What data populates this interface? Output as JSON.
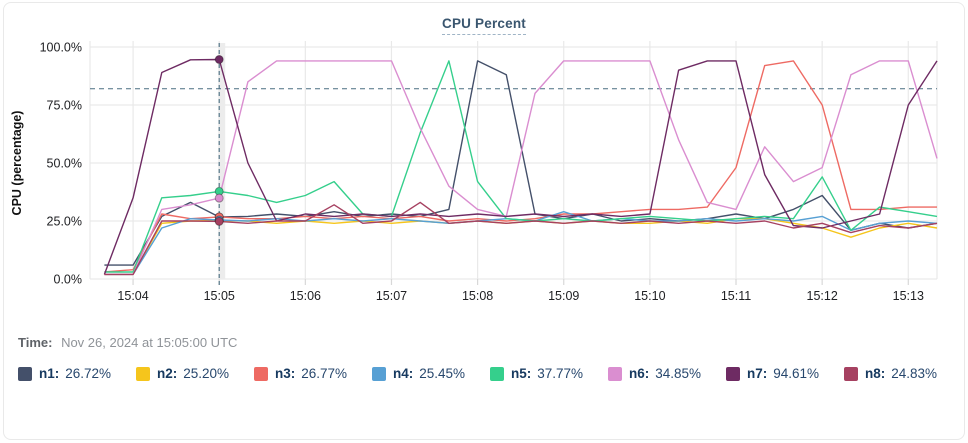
{
  "time_row": {
    "label": "Time:",
    "value": "Nov 26, 2024 at 15:05:00 UTC"
  },
  "chart_data": {
    "type": "line",
    "title": "CPU Percent",
    "ylabel": "CPU (percentage)",
    "ylim": [
      0,
      100
    ],
    "y_ticks": [
      {
        "percent": 0,
        "label": "0.0%"
      },
      {
        "percent": 25,
        "label": "25.0%"
      },
      {
        "percent": 50,
        "label": "50.0%"
      },
      {
        "percent": 75,
        "label": "75.0%"
      },
      {
        "percent": 100,
        "label": "100.0%"
      }
    ],
    "x_ticks": [
      "15:04",
      "15:05",
      "15:06",
      "15:07",
      "15:08",
      "15:09",
      "15:10",
      "15:11",
      "15:12",
      "15:13"
    ],
    "x_domain_seconds": [
      210,
      800
    ],
    "x_start_time": "15:03:40",
    "x_step_seconds": 20,
    "grid": true,
    "threshold_percent": 82,
    "cursor": {
      "time": "15:05:00",
      "seconds": 300
    },
    "guide_color": "#4a6e81",
    "grid_color": "#e9e9e9",
    "series": [
      {
        "name": "n1",
        "legend_label": "n1:",
        "legend_value": "26.72%",
        "cursor_value": 26.72,
        "color": "#44506a",
        "values": [
          6,
          6,
          27,
          33,
          26.72,
          27,
          28,
          27,
          29,
          27,
          28,
          27,
          30,
          94,
          88,
          28,
          26,
          28,
          25,
          26,
          25,
          26,
          28,
          26,
          30,
          36,
          21,
          24,
          22,
          24
        ]
      },
      {
        "name": "n2",
        "legend_label": "n2:",
        "legend_value": "25.20%",
        "cursor_value": 25.2,
        "color": "#f5c51c",
        "values": [
          2,
          2,
          24,
          25,
          25.2,
          25,
          24,
          25,
          24,
          25,
          24,
          25,
          24,
          25,
          24,
          25,
          24,
          25,
          24,
          24,
          25,
          24,
          26,
          26,
          24,
          22,
          18,
          22,
          24,
          22
        ]
      },
      {
        "name": "n3",
        "legend_label": "n3:",
        "legend_value": "26.77%",
        "cursor_value": 26.77,
        "color": "#ee6a63",
        "values": [
          3,
          4,
          28,
          26,
          26.77,
          26,
          26,
          27,
          26,
          27,
          26,
          27,
          25,
          26,
          25,
          26,
          28,
          28,
          29,
          30,
          30,
          31,
          48,
          92,
          94,
          75,
          30,
          30,
          31,
          31
        ]
      },
      {
        "name": "n4",
        "legend_label": "n4:",
        "legend_value": "25.45%",
        "cursor_value": 25.45,
        "color": "#57a0d4",
        "values": [
          2,
          2,
          22,
          26,
          25.45,
          25,
          26,
          25,
          26,
          25,
          26,
          25,
          24,
          25,
          26,
          25,
          29,
          25,
          26,
          25,
          25,
          26,
          25,
          26,
          25,
          27,
          21,
          24,
          25,
          24
        ]
      },
      {
        "name": "n5",
        "legend_label": "n5:",
        "legend_value": "37.77%",
        "cursor_value": 37.77,
        "color": "#35cf8c",
        "values": [
          3,
          3,
          35,
          36,
          37.77,
          36,
          33,
          36,
          42,
          28,
          27,
          63,
          94,
          42,
          26,
          25,
          26,
          25,
          26,
          27,
          26,
          25,
          26,
          27,
          26,
          44,
          21,
          31,
          29,
          27
        ]
      },
      {
        "name": "n6",
        "legend_label": "n6:",
        "legend_value": "34.85%",
        "cursor_value": 34.85,
        "color": "#da8ed0",
        "values": [
          2,
          2,
          30,
          32,
          34.85,
          85,
          94,
          94,
          94,
          94,
          94,
          65,
          40,
          30,
          27,
          80,
          94,
          94,
          94,
          94,
          60,
          33,
          30,
          57,
          42,
          48,
          88,
          94,
          94,
          52
        ]
      },
      {
        "name": "n7",
        "legend_label": "n7:",
        "legend_value": "94.61%",
        "cursor_value": 94.61,
        "color": "#6e2b63",
        "values": [
          2,
          35,
          89,
          94.5,
          94.61,
          50,
          25,
          28,
          27,
          28,
          27,
          28,
          27,
          28,
          27,
          28,
          27,
          28,
          27,
          28,
          90,
          94,
          94,
          45,
          23,
          22,
          25,
          28,
          75,
          94
        ]
      },
      {
        "name": "n8",
        "legend_label": "n8:",
        "legend_value": "24.83%",
        "cursor_value": 24.83,
        "color": "#a64161",
        "values": [
          2,
          2,
          25,
          25,
          24.83,
          24,
          25,
          25,
          32,
          24,
          25,
          33,
          24,
          25,
          24,
          25,
          24,
          25,
          24,
          25,
          24,
          25,
          24,
          25,
          22,
          24,
          20,
          23,
          22,
          24
        ]
      }
    ]
  }
}
